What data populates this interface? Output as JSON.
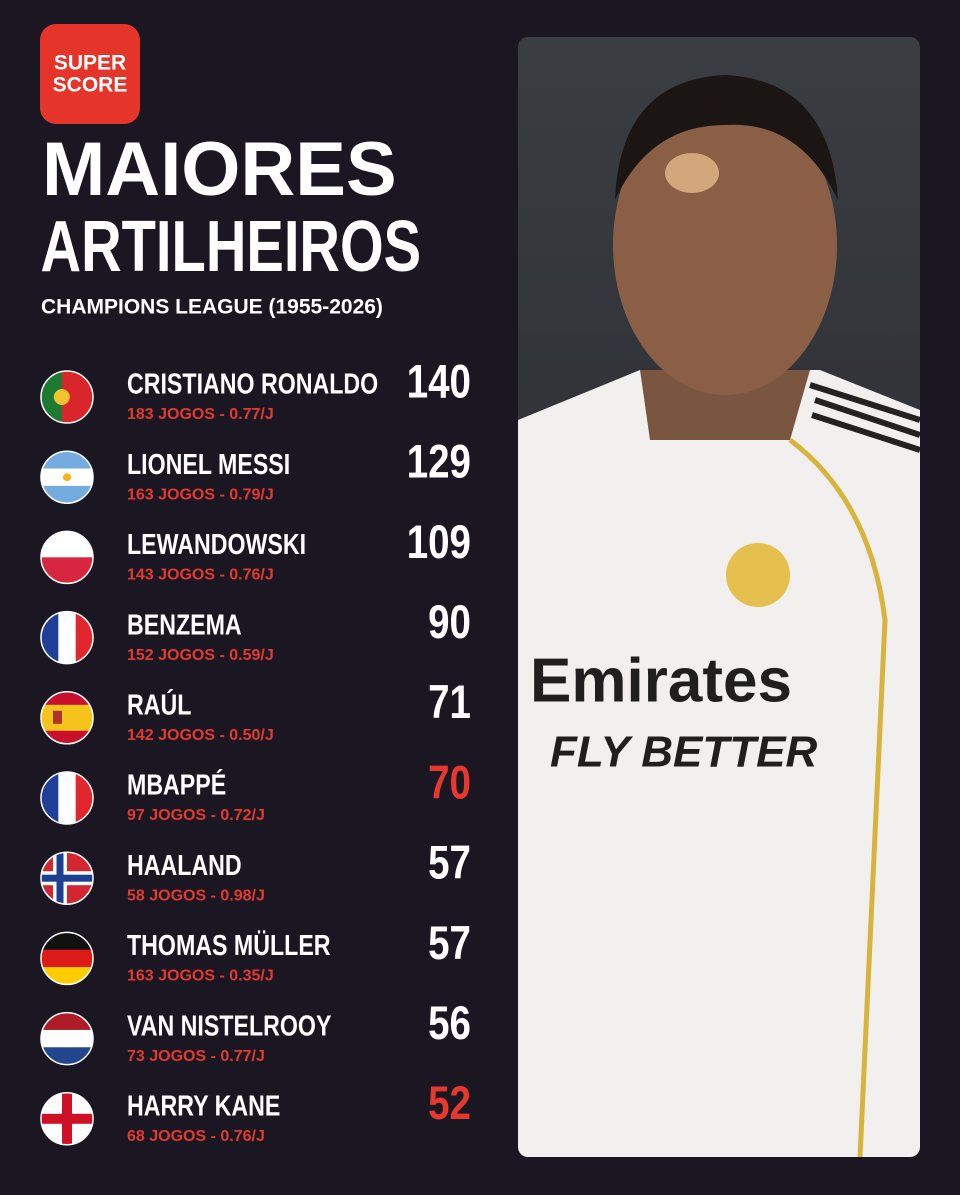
{
  "logo": {
    "lines": [
      "SUPER",
      "SCORE"
    ]
  },
  "title": [
    "MAIORES",
    "ARTILHEIROS"
  ],
  "subtitle": "CHAMPIONS LEAGUE (1955-2026)",
  "rows": [
    {
      "flag": "pt",
      "name": "CRISTIANO RONALDO",
      "stats": "183 JOGOS - 0.77/J",
      "goals": 140,
      "color": "#ffffff"
    },
    {
      "flag": "ar",
      "name": "LIONEL MESSI",
      "stats": "163 JOGOS - 0.79/J",
      "goals": 129,
      "color": "#ffffff"
    },
    {
      "flag": "pl",
      "name": "LEWANDOWSKI",
      "stats": "143 JOGOS - 0.76/J",
      "goals": 109,
      "color": "#ffffff"
    },
    {
      "flag": "fr",
      "name": "BENZEMA",
      "stats": "152 JOGOS - 0.59/J",
      "goals": 90,
      "color": "#ffffff"
    },
    {
      "flag": "es",
      "name": "RAÚL",
      "stats": "142 JOGOS - 0.50/J",
      "goals": 71,
      "color": "#ffffff"
    },
    {
      "flag": "fr",
      "name": "MBAPPÉ",
      "stats": "97 JOGOS - 0.72/J",
      "goals": 70,
      "color": "#e8382e"
    },
    {
      "flag": "no",
      "name": "HAALAND",
      "stats": "58 JOGOS - 0.98/J",
      "goals": 57,
      "color": "#ffffff"
    },
    {
      "flag": "de",
      "name": "THOMAS MÜLLER",
      "stats": "163 JOGOS - 0.35/J",
      "goals": 57,
      "color": "#ffffff"
    },
    {
      "flag": "nl",
      "name": "VAN NISTELROOY",
      "stats": "73 JOGOS - 0.77/J",
      "goals": 56,
      "color": "#ffffff"
    },
    {
      "flag": "en",
      "name": "HARRY KANE",
      "stats": "68 JOGOS - 0.76/J",
      "goals": 52,
      "color": "#e8382e"
    }
  ],
  "photo": {
    "sponsor": "Emirates",
    "slogan": "FLY BETTER"
  }
}
